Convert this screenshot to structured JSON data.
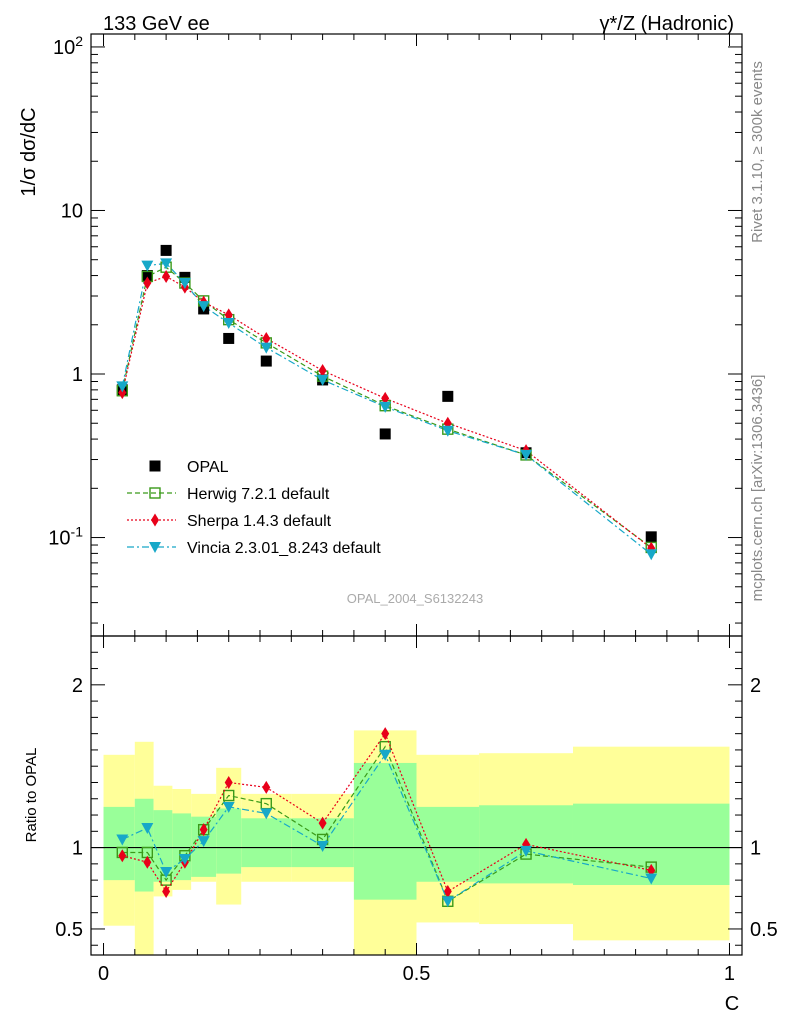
{
  "header": {
    "left_title": "133 GeV ee",
    "right_title": "γ*/Z (Hadronic)"
  },
  "side_labels": {
    "rivet": "Rivet 3.1.10, ≥ 300k events",
    "mcplots": "mcplots.cern.ch [arXiv:1306.3436]"
  },
  "watermark": "OPAL_2004_S6132243",
  "colors": {
    "data": "#000000",
    "herwig": "#3a9a1a",
    "sherpa": "#e8001a",
    "vincia": "#17a8c8",
    "band_inner": "#99ff99",
    "band_outer": "#ffff99"
  },
  "chart_data": [
    {
      "type": "scatter",
      "panel": "main",
      "ylabel": "1/σ dσ/dC",
      "yscale": "log",
      "ylim": [
        0.025,
        120
      ],
      "xlim": [
        -0.02,
        1.02
      ],
      "y_tick_labels": [
        "10^-1",
        "1",
        "10",
        "10^2"
      ],
      "legend_placement": "lower-left",
      "series": [
        {
          "name": "OPAL",
          "marker": "square-filled",
          "x": [
            0.03,
            0.07,
            0.1,
            0.13,
            0.16,
            0.2,
            0.26,
            0.35,
            0.45,
            0.55,
            0.675,
            0.875
          ],
          "values": [
            0.8,
            4.0,
            5.7,
            3.9,
            2.5,
            1.65,
            1.2,
            0.92,
            0.43,
            0.73,
            0.33,
            0.101
          ]
        },
        {
          "name": "Herwig 7.2.1 default",
          "marker": "square-open",
          "x": [
            0.03,
            0.07,
            0.1,
            0.13,
            0.16,
            0.2,
            0.26,
            0.35,
            0.45,
            0.55,
            0.675,
            0.875
          ],
          "values": [
            0.79,
            3.95,
            4.5,
            3.6,
            2.8,
            2.15,
            1.55,
            0.97,
            0.64,
            0.46,
            0.32,
            0.087
          ]
        },
        {
          "name": "Sherpa 1.4.3 default",
          "marker": "diamond-filled",
          "x": [
            0.03,
            0.07,
            0.1,
            0.13,
            0.16,
            0.2,
            0.26,
            0.35,
            0.45,
            0.55,
            0.675,
            0.875
          ],
          "values": [
            0.77,
            3.6,
            3.95,
            3.4,
            2.75,
            2.3,
            1.65,
            1.05,
            0.71,
            0.5,
            0.34,
            0.086
          ]
        },
        {
          "name": "Vincia 2.3.01_8.243 default",
          "marker": "triangle-down-filled",
          "x": [
            0.03,
            0.07,
            0.1,
            0.13,
            0.16,
            0.2,
            0.26,
            0.35,
            0.45,
            0.55,
            0.675,
            0.875
          ],
          "values": [
            0.84,
            4.6,
            4.75,
            3.6,
            2.6,
            2.05,
            1.45,
            0.92,
            0.63,
            0.45,
            0.32,
            0.079
          ]
        }
      ]
    },
    {
      "type": "line",
      "panel": "ratio",
      "ylabel": "Ratio to OPAL",
      "xlabel": "C",
      "ylim": [
        0.34,
        2.3
      ],
      "xlim": [
        -0.02,
        1.02
      ],
      "x_tick_labels": [
        "0",
        "0.5",
        "1"
      ],
      "y_tick_labels": [
        "0.5",
        "1",
        "2"
      ],
      "reference_line": 1,
      "bands": [
        {
          "x0": 0.0,
          "x1": 0.05,
          "inner": [
            0.8,
            1.25
          ],
          "outer": [
            0.52,
            1.57
          ]
        },
        {
          "x0": 0.05,
          "x1": 0.08,
          "inner": [
            0.73,
            1.3
          ],
          "outer": [
            0.34,
            1.65
          ]
        },
        {
          "x0": 0.08,
          "x1": 0.11,
          "inner": [
            0.79,
            1.23
          ],
          "outer": [
            0.7,
            1.38
          ]
        },
        {
          "x0": 0.11,
          "x1": 0.14,
          "inner": [
            0.8,
            1.21
          ],
          "outer": [
            0.74,
            1.36
          ]
        },
        {
          "x0": 0.14,
          "x1": 0.18,
          "inner": [
            0.82,
            1.19
          ],
          "outer": [
            0.79,
            1.33
          ]
        },
        {
          "x0": 0.18,
          "x1": 0.22,
          "inner": [
            0.84,
            1.24
          ],
          "outer": [
            0.65,
            1.49
          ]
        },
        {
          "x0": 0.22,
          "x1": 0.3,
          "inner": [
            0.88,
            1.18
          ],
          "outer": [
            0.79,
            1.33
          ]
        },
        {
          "x0": 0.3,
          "x1": 0.4,
          "inner": [
            0.88,
            1.18
          ],
          "outer": [
            0.79,
            1.33
          ]
        },
        {
          "x0": 0.4,
          "x1": 0.5,
          "inner": [
            0.68,
            1.52
          ],
          "outer": [
            0.34,
            1.72
          ]
        },
        {
          "x0": 0.5,
          "x1": 0.6,
          "inner": [
            0.79,
            1.25
          ],
          "outer": [
            0.54,
            1.57
          ]
        },
        {
          "x0": 0.6,
          "x1": 0.75,
          "inner": [
            0.78,
            1.26
          ],
          "outer": [
            0.53,
            1.58
          ]
        },
        {
          "x0": 0.75,
          "x1": 1.0,
          "inner": [
            0.77,
            1.27
          ],
          "outer": [
            0.43,
            1.62
          ]
        }
      ],
      "series": [
        {
          "name": "Herwig 7.2.1 default",
          "x": [
            0.03,
            0.07,
            0.1,
            0.13,
            0.16,
            0.2,
            0.26,
            0.35,
            0.45,
            0.55,
            0.675,
            0.875
          ],
          "values": [
            0.97,
            0.97,
            0.8,
            0.95,
            1.11,
            1.32,
            1.27,
            1.05,
            1.62,
            0.67,
            0.96,
            0.88
          ]
        },
        {
          "name": "Sherpa 1.4.3 default",
          "x": [
            0.03,
            0.07,
            0.1,
            0.13,
            0.16,
            0.2,
            0.26,
            0.35,
            0.45,
            0.55,
            0.675,
            0.875
          ],
          "values": [
            0.95,
            0.91,
            0.73,
            0.91,
            1.11,
            1.4,
            1.37,
            1.15,
            1.7,
            0.73,
            1.02,
            0.86
          ]
        },
        {
          "name": "Vincia 2.3.01_8.243 default",
          "x": [
            0.03,
            0.07,
            0.1,
            0.13,
            0.16,
            0.2,
            0.26,
            0.35,
            0.45,
            0.55,
            0.675,
            0.875
          ],
          "values": [
            1.05,
            1.12,
            0.85,
            0.93,
            1.04,
            1.25,
            1.21,
            1.01,
            1.57,
            0.67,
            0.98,
            0.81
          ]
        }
      ]
    }
  ]
}
